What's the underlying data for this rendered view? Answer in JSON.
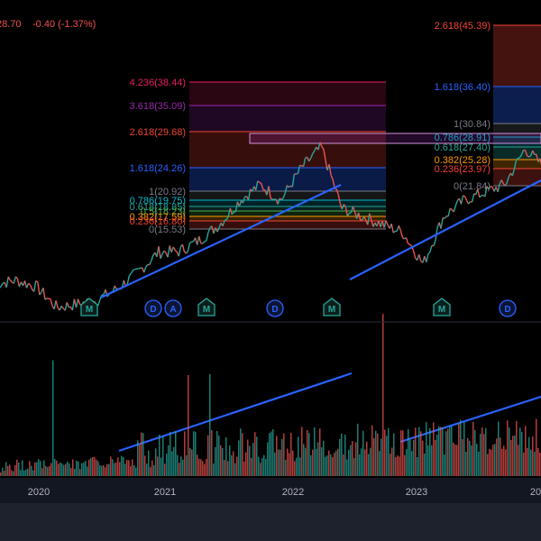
{
  "header": {
    "price_fragment": "28.70",
    "change": "-0.40 (-1.37%)"
  },
  "colors": {
    "up": "#26a69a",
    "down": "#ef5350",
    "trend": "#2962ff",
    "marker_m": "#26a69a",
    "marker_d": "#2962ff",
    "background": "#000000"
  },
  "x_axis": {
    "labels": [
      "2020",
      "2021",
      "2022",
      "2023",
      "20"
    ]
  },
  "markers": [
    {
      "letter": "M"
    },
    {
      "letter": "D"
    },
    {
      "letter": "A"
    },
    {
      "letter": "M"
    },
    {
      "letter": "D"
    },
    {
      "letter": "M"
    },
    {
      "letter": "M"
    },
    {
      "letter": "D"
    }
  ],
  "fib_left": {
    "levels": [
      {
        "ratio": "4.236",
        "price": "38.44",
        "label": "4.236(38.44)",
        "color": "#e91e63"
      },
      {
        "ratio": "3.618",
        "price": "35.09",
        "label": "3.618(35.09)",
        "color": "#9c27b0"
      },
      {
        "ratio": "2.618",
        "price": "29.68",
        "label": "2.618(29.68)",
        "color": "#f44336"
      },
      {
        "ratio": "1.618",
        "price": "24.26",
        "label": "1.618(24.26)",
        "color": "#2962ff"
      },
      {
        "ratio": "1",
        "price": "20.92",
        "label": "1(20.92)",
        "color": "#787b86"
      },
      {
        "ratio": "0.786",
        "price": "19.75",
        "label": "0.786(19.75)",
        "color": "#00bcd4"
      },
      {
        "ratio": "0.618",
        "price": "18.85",
        "label": "0.618(18.85)",
        "color": "#26a69a"
      },
      {
        "ratio": "0.5",
        "price": "18.23",
        "label": "0.5(18.23)",
        "color": "#4caf50"
      },
      {
        "ratio": "0.382",
        "price": "17.59",
        "label": "0.382(17.59)",
        "color": "#ff9800"
      },
      {
        "ratio": "0.236",
        "price": "16.80",
        "label": "0.236(16.80)",
        "color": "#f44336"
      },
      {
        "ratio": "0",
        "price": "15.53",
        "label": "0(15.53)",
        "color": "#787b86"
      }
    ]
  },
  "fib_right": {
    "levels": [
      {
        "ratio": "2.618",
        "price": "45.39",
        "label": "2.618(45.39)",
        "color": "#f44336"
      },
      {
        "ratio": "1.618",
        "price": "36.40",
        "label": "1.618(36.40)",
        "color": "#2962ff"
      },
      {
        "ratio": "1",
        "price": "30.84",
        "label": "1(30.84)",
        "color": "#787b86"
      },
      {
        "ratio": "0.786",
        "price": "28.91",
        "label": "0.786(28.91)",
        "color": "#00bcd4"
      },
      {
        "ratio": "0.618",
        "price": "27.40",
        "label": "0.618(27.40)",
        "color": "#26a69a"
      },
      {
        "ratio": "0.382",
        "price": "25.28",
        "label": "0.382(25.28)",
        "color": "#ff9800"
      },
      {
        "ratio": "0.236",
        "price": "23.97",
        "label": "0.236(23.97)",
        "color": "#f44336"
      },
      {
        "ratio": "0",
        "price": "21.84",
        "label": "0(21.84)",
        "color": "#787b86"
      }
    ]
  },
  "chart_data": [
    {
      "type": "line",
      "title": "",
      "xlabel": "",
      "ylabel": "",
      "x": [
        "2019-10",
        "2019-12",
        "2020-02",
        "2020-03",
        "2020-05",
        "2020-07",
        "2020-09",
        "2020-11",
        "2021-01",
        "2021-02",
        "2021-04",
        "2021-06",
        "2021-08",
        "2021-10",
        "2021-12",
        "2022-02",
        "2022-03",
        "2022-05",
        "2022-07",
        "2022-09",
        "2022-10",
        "2022-12",
        "2023-02",
        "2023-04",
        "2023-06",
        "2023-08",
        "2023-09",
        "2023-11"
      ],
      "series": [
        {
          "values": [
            11.5,
            12.0,
            11.2,
            8.6,
            9.0,
            9.5,
            11.0,
            13.0,
            15.5,
            15.6,
            17.0,
            19.0,
            22.0,
            24.0,
            22.0,
            26.0,
            28.7,
            21.0,
            20.0,
            19.0,
            18.0,
            14.0,
            20.0,
            22.0,
            23.0,
            24.0,
            28.5,
            26.0
          ]
        }
      ],
      "ylim": [
        7,
        46
      ],
      "grid": false
    },
    {
      "type": "bar",
      "title": "",
      "ylabel": "",
      "x_range": [
        "2019-10",
        "2023-12"
      ],
      "values_description_omitted": true,
      "grid": false
    }
  ]
}
